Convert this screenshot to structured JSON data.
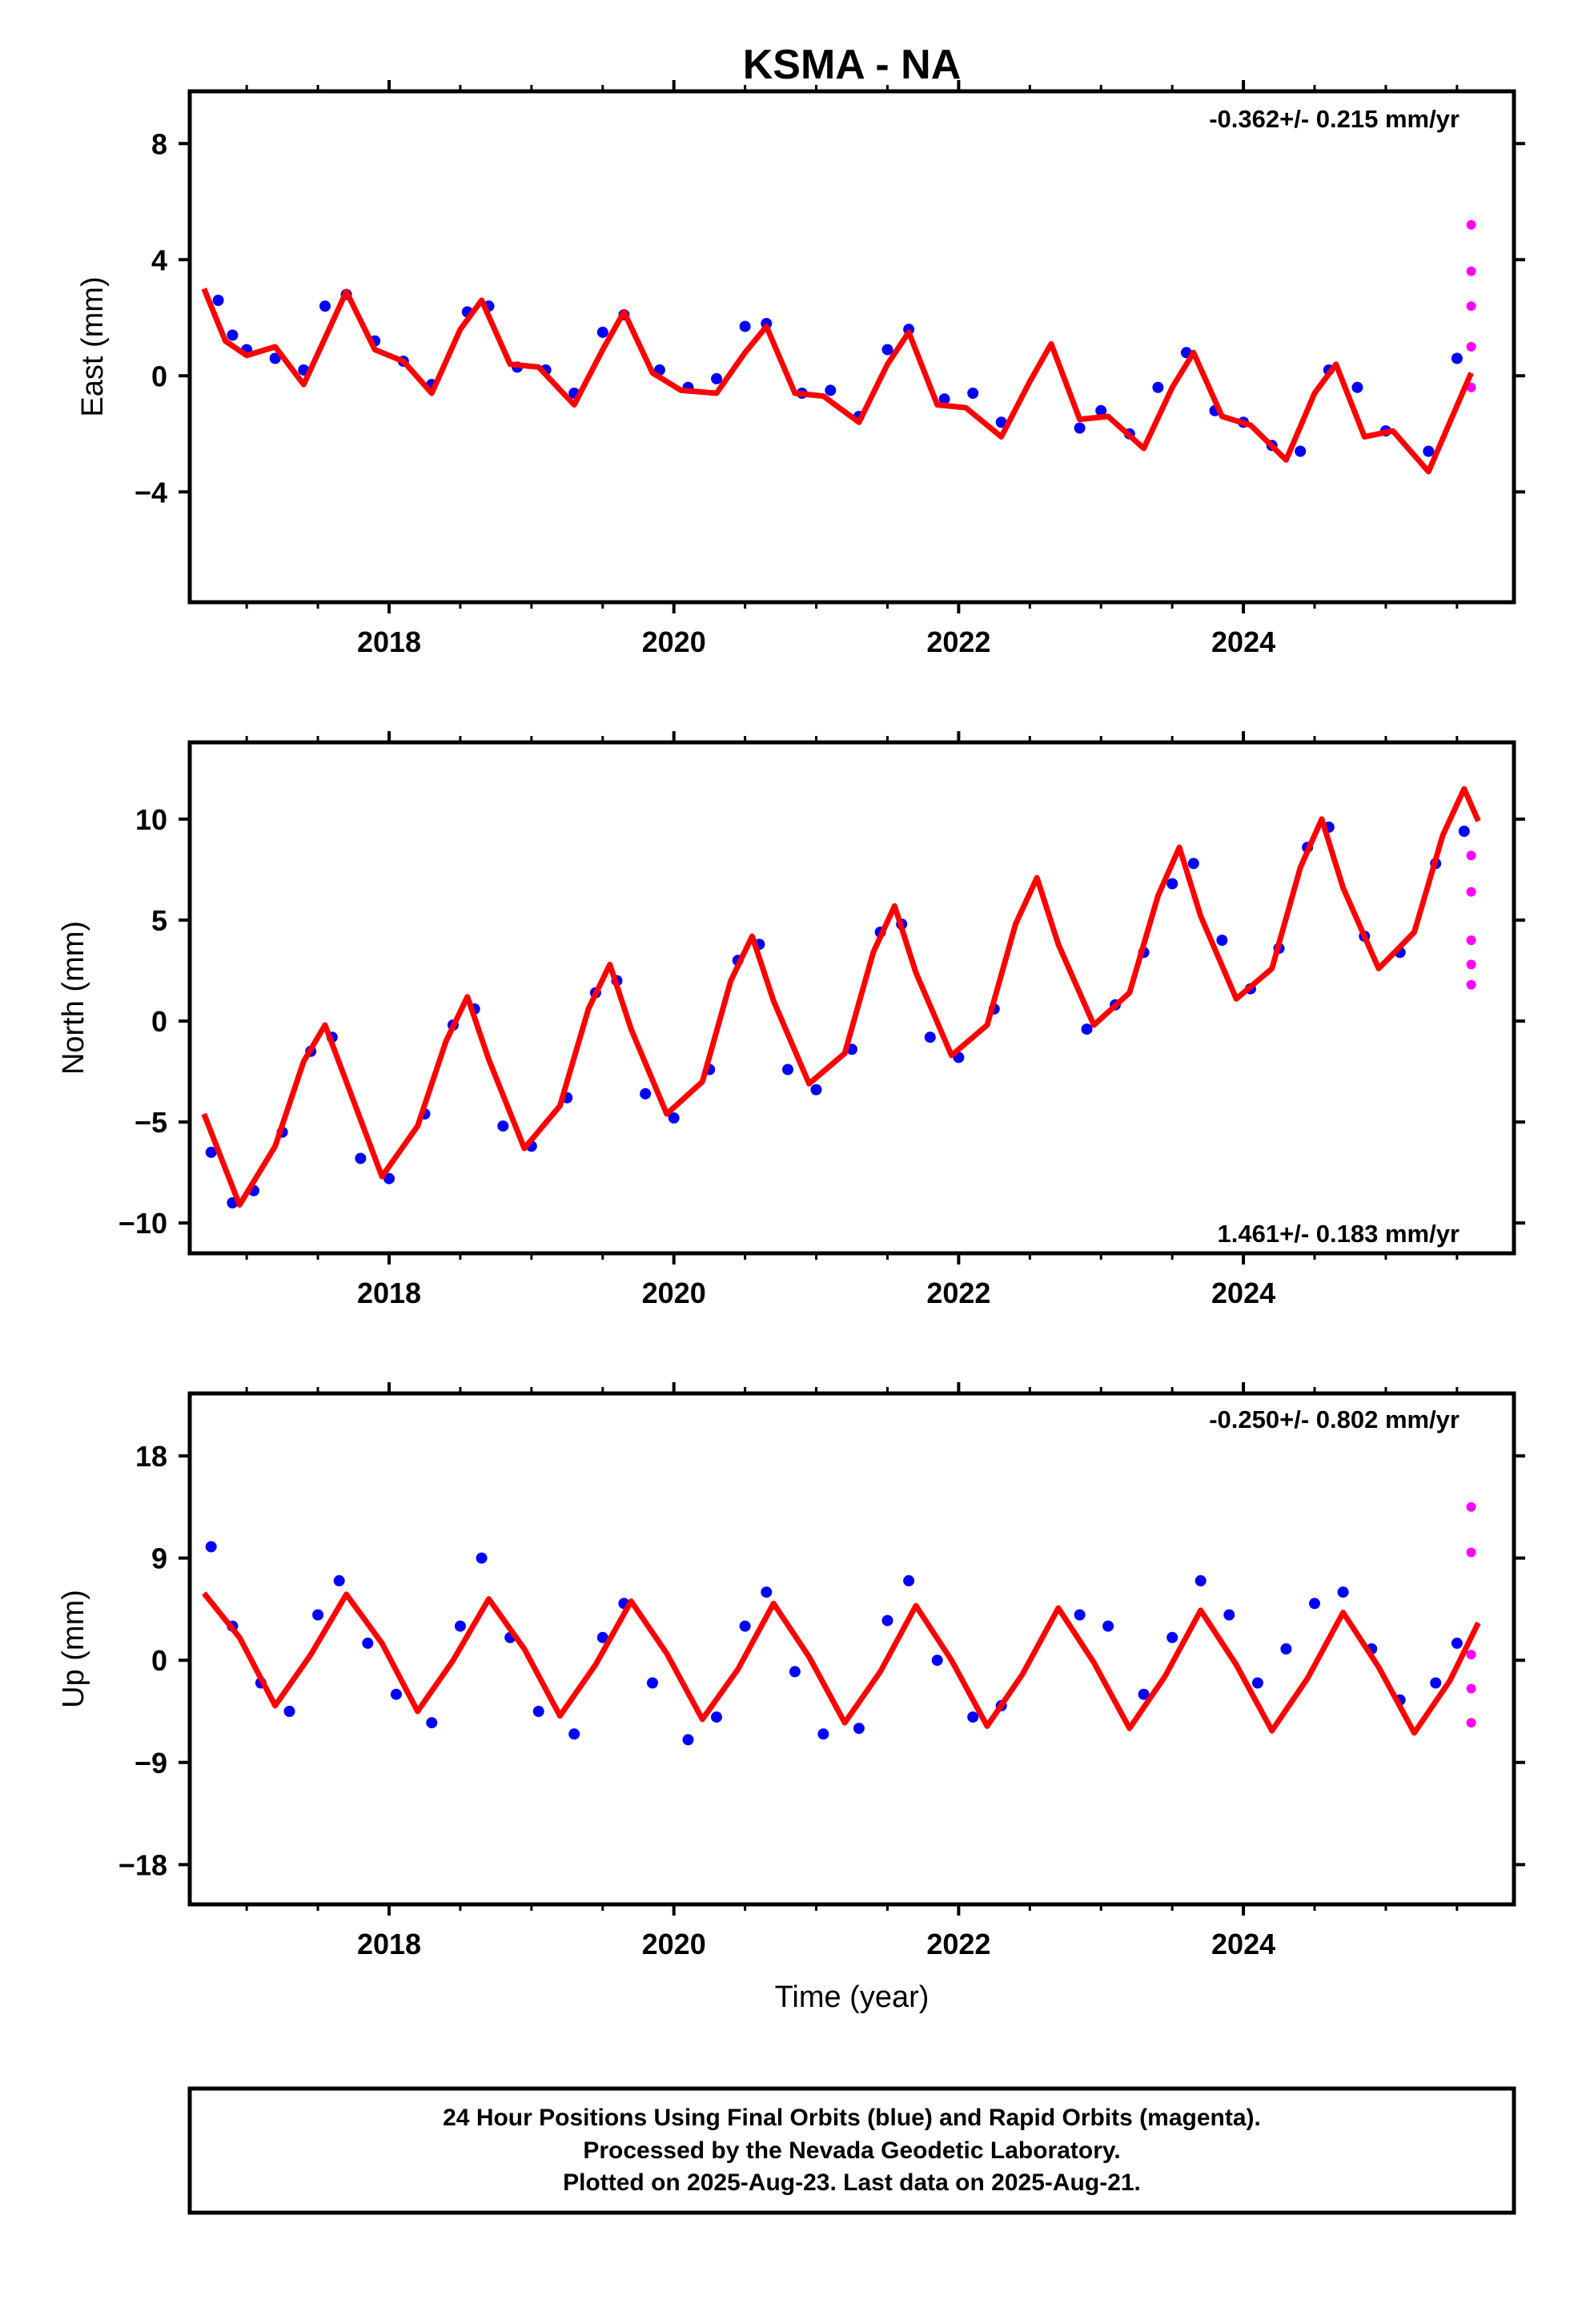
{
  "title": "KSMA - NA",
  "colors": {
    "final_orbits": "#0000ff",
    "rapid_orbits": "#ff00ff",
    "model_fit": "#ff0000",
    "frame": "#000000"
  },
  "chart_data": [
    {
      "type": "scatter",
      "ylabel": "East (mm)",
      "rate_label": "-0.362+/- 0.215 mm/yr",
      "rate_position": "top-right",
      "xlim": [
        2016.6,
        2025.9
      ],
      "ylim": [
        -7.8,
        9.8
      ],
      "xticks": [
        2018,
        2020,
        2022,
        2024
      ],
      "xtick_labels": [
        "2018",
        "2020",
        "2022",
        "2024"
      ],
      "yticks": [
        -4,
        0,
        4,
        8
      ],
      "ytick_labels": [
        "−4",
        "0",
        "4",
        "8"
      ],
      "series": [
        {
          "role": "final",
          "x": [
            2016.8,
            2016.9,
            2017.0,
            2017.2,
            2017.4,
            2017.55,
            2017.7,
            2017.9,
            2018.1,
            2018.3,
            2018.55,
            2018.7,
            2018.9,
            2019.1,
            2019.3,
            2019.5,
            2019.65,
            2019.9,
            2020.1,
            2020.3,
            2020.5,
            2020.65,
            2020.9,
            2021.1,
            2021.3,
            2021.5,
            2021.65,
            2021.9,
            2022.1,
            2022.3,
            2022.85,
            2023.0,
            2023.2,
            2023.4,
            2023.6,
            2023.8,
            2024.0,
            2024.2,
            2024.4,
            2024.6,
            2024.8,
            2025.0,
            2025.3,
            2025.5
          ],
          "y": [
            2.6,
            1.4,
            0.9,
            0.6,
            0.2,
            2.4,
            2.8,
            1.2,
            0.5,
            -0.3,
            2.2,
            2.4,
            0.3,
            0.2,
            -0.6,
            1.5,
            2.1,
            0.2,
            -0.4,
            -0.1,
            1.7,
            1.8,
            -0.6,
            -0.5,
            -1.4,
            0.9,
            1.6,
            -0.8,
            -0.6,
            -1.6,
            -1.8,
            -1.2,
            -2.0,
            -0.4,
            0.8,
            -1.2,
            -1.6,
            -2.4,
            -2.6,
            0.2,
            -0.4,
            -1.9,
            -2.6,
            0.6
          ]
        },
        {
          "role": "rapid",
          "x": [
            2025.6,
            2025.6,
            2025.6,
            2025.6,
            2025.6
          ],
          "y": [
            5.2,
            3.6,
            2.4,
            1.0,
            -0.4
          ]
        },
        {
          "role": "fit",
          "x": [
            2016.7,
            2016.85,
            2017.0,
            2017.2,
            2017.4,
            2017.55,
            2017.7,
            2017.9,
            2018.1,
            2018.3,
            2018.5,
            2018.65,
            2018.85,
            2019.05,
            2019.3,
            2019.5,
            2019.65,
            2019.85,
            2020.05,
            2020.3,
            2020.5,
            2020.65,
            2020.85,
            2021.05,
            2021.3,
            2021.5,
            2021.65,
            2021.85,
            2022.05,
            2022.3,
            2022.5,
            2022.65,
            2022.85,
            2023.05,
            2023.3,
            2023.5,
            2023.65,
            2023.85,
            2024.05,
            2024.3,
            2024.5,
            2024.65,
            2024.85,
            2025.05,
            2025.3,
            2025.6
          ],
          "y": [
            3.0,
            1.2,
            0.7,
            1.0,
            -0.3,
            1.3,
            2.9,
            0.9,
            0.5,
            -0.6,
            1.6,
            2.6,
            0.4,
            0.3,
            -1.0,
            0.9,
            2.2,
            0.1,
            -0.5,
            -0.6,
            0.8,
            1.7,
            -0.6,
            -0.7,
            -1.6,
            0.4,
            1.5,
            -1.0,
            -1.1,
            -2.1,
            -0.2,
            1.1,
            -1.5,
            -1.4,
            -2.5,
            -0.4,
            0.8,
            -1.4,
            -1.7,
            -2.9,
            -0.6,
            0.4,
            -2.1,
            -1.9,
            -3.3,
            0.1
          ]
        }
      ]
    },
    {
      "type": "scatter",
      "ylabel": "North (mm)",
      "rate_label": "1.461+/- 0.183 mm/yr",
      "rate_position": "bottom-right",
      "xlim": [
        2016.6,
        2025.9
      ],
      "ylim": [
        -11.5,
        13.8
      ],
      "xticks": [
        2018,
        2020,
        2022,
        2024
      ],
      "xtick_labels": [
        "2018",
        "2020",
        "2022",
        "2024"
      ],
      "yticks": [
        -10,
        -5,
        0,
        5,
        10
      ],
      "ytick_labels": [
        "−10",
        "−5",
        "0",
        "5",
        "10"
      ],
      "series": [
        {
          "role": "final",
          "x": [
            2016.75,
            2016.9,
            2017.05,
            2017.25,
            2017.45,
            2017.6,
            2017.8,
            2018.0,
            2018.25,
            2018.45,
            2018.6,
            2018.8,
            2019.0,
            2019.25,
            2019.45,
            2019.6,
            2019.8,
            2020.0,
            2020.25,
            2020.45,
            2020.6,
            2020.8,
            2021.0,
            2021.25,
            2021.45,
            2021.6,
            2021.8,
            2022.0,
            2022.25,
            2022.9,
            2023.1,
            2023.3,
            2023.5,
            2023.65,
            2023.85,
            2024.05,
            2024.25,
            2024.45,
            2024.6,
            2024.85,
            2025.1,
            2025.35,
            2025.55
          ],
          "y": [
            -6.5,
            -9.0,
            -8.4,
            -5.5,
            -1.5,
            -0.8,
            -6.8,
            -7.8,
            -4.6,
            -0.2,
            0.6,
            -5.2,
            -6.2,
            -3.8,
            1.4,
            2.0,
            -3.6,
            -4.8,
            -2.4,
            3.0,
            3.8,
            -2.4,
            -3.4,
            -1.4,
            4.4,
            4.8,
            -0.8,
            -1.8,
            0.6,
            -0.4,
            0.8,
            3.4,
            6.8,
            7.8,
            4.0,
            1.6,
            3.6,
            8.6,
            9.6,
            4.2,
            3.4,
            7.8,
            9.4
          ]
        },
        {
          "role": "rapid",
          "x": [
            2025.6,
            2025.6,
            2025.6,
            2025.6,
            2025.6
          ],
          "y": [
            8.2,
            6.4,
            4.0,
            2.8,
            1.8
          ]
        },
        {
          "role": "fit",
          "x": [
            2016.7,
            2016.95,
            2017.2,
            2017.4,
            2017.55,
            2017.7,
            2017.95,
            2018.2,
            2018.4,
            2018.55,
            2018.7,
            2018.95,
            2019.2,
            2019.4,
            2019.55,
            2019.7,
            2019.95,
            2020.2,
            2020.4,
            2020.55,
            2020.7,
            2020.95,
            2021.2,
            2021.4,
            2021.55,
            2021.7,
            2021.95,
            2022.2,
            2022.4,
            2022.55,
            2022.7,
            2022.95,
            2023.2,
            2023.4,
            2023.55,
            2023.7,
            2023.95,
            2024.2,
            2024.4,
            2024.55,
            2024.7,
            2024.95,
            2025.2,
            2025.4,
            2025.55,
            2025.65
          ],
          "y": [
            -4.6,
            -9.1,
            -6.2,
            -2.0,
            -0.2,
            -3.0,
            -7.7,
            -5.2,
            -1.0,
            1.2,
            -1.9,
            -6.3,
            -4.2,
            0.6,
            2.8,
            -0.4,
            -4.6,
            -3.0,
            2.0,
            4.2,
            1.0,
            -3.1,
            -1.6,
            3.4,
            5.7,
            2.4,
            -1.7,
            -0.2,
            4.8,
            7.1,
            3.8,
            -0.2,
            1.4,
            6.2,
            8.6,
            5.2,
            1.1,
            2.6,
            7.6,
            10.0,
            6.6,
            2.6,
            4.4,
            9.2,
            11.5,
            9.9
          ]
        }
      ]
    },
    {
      "type": "scatter",
      "ylabel": "Up (mm)",
      "rate_label": "-0.250+/- 0.802 mm/yr",
      "rate_position": "top-right",
      "xlabel": "Time (year)",
      "xlim": [
        2016.6,
        2025.9
      ],
      "ylim": [
        -21.5,
        23.5
      ],
      "xticks": [
        2018,
        2020,
        2022,
        2024
      ],
      "xtick_labels": [
        "2018",
        "2020",
        "2022",
        "2024"
      ],
      "yticks": [
        -18,
        -9,
        0,
        9,
        18
      ],
      "ytick_labels": [
        "−18",
        "−9",
        "0",
        "9",
        "18"
      ],
      "series": [
        {
          "role": "final",
          "x": [
            2016.75,
            2016.9,
            2017.1,
            2017.3,
            2017.5,
            2017.65,
            2017.85,
            2018.05,
            2018.3,
            2018.5,
            2018.65,
            2018.85,
            2019.05,
            2019.3,
            2019.5,
            2019.65,
            2019.85,
            2020.1,
            2020.3,
            2020.5,
            2020.65,
            2020.85,
            2021.05,
            2021.3,
            2021.5,
            2021.65,
            2021.85,
            2022.1,
            2022.3,
            2022.85,
            2023.05,
            2023.3,
            2023.5,
            2023.7,
            2023.9,
            2024.1,
            2024.3,
            2024.5,
            2024.7,
            2024.9,
            2025.1,
            2025.35,
            2025.5
          ],
          "y": [
            10.0,
            3.0,
            -2.0,
            -4.5,
            4.0,
            7.0,
            1.5,
            -3.0,
            -5.5,
            3.0,
            9.0,
            2.0,
            -4.5,
            -6.5,
            2.0,
            5.0,
            -2.0,
            -7.0,
            -5.0,
            3.0,
            6.0,
            -1.0,
            -6.5,
            -6.0,
            3.5,
            7.0,
            0.0,
            -5.0,
            -4.0,
            4.0,
            3.0,
            -3.0,
            2.0,
            7.0,
            4.0,
            -2.0,
            1.0,
            5.0,
            6.0,
            1.0,
            -3.5,
            -2.0,
            1.5
          ]
        },
        {
          "role": "rapid",
          "x": [
            2025.6,
            2025.6,
            2025.6,
            2025.6,
            2025.6
          ],
          "y": [
            13.5,
            9.5,
            0.5,
            -2.5,
            -5.5
          ]
        },
        {
          "role": "fit",
          "x": [
            2016.7,
            2016.95,
            2017.2,
            2017.45,
            2017.7,
            2017.95,
            2018.2,
            2018.45,
            2018.7,
            2018.95,
            2019.2,
            2019.45,
            2019.7,
            2019.95,
            2020.2,
            2020.45,
            2020.7,
            2020.95,
            2021.2,
            2021.45,
            2021.7,
            2021.95,
            2022.2,
            2022.45,
            2022.7,
            2022.95,
            2023.2,
            2023.45,
            2023.7,
            2023.95,
            2024.2,
            2024.45,
            2024.7,
            2024.95,
            2025.2,
            2025.45,
            2025.65
          ],
          "y": [
            5.9,
            2.0,
            -4.0,
            0.5,
            5.8,
            1.5,
            -4.5,
            0.0,
            5.4,
            1.0,
            -4.9,
            -0.4,
            5.2,
            0.6,
            -5.2,
            -0.8,
            5.0,
            0.3,
            -5.5,
            -1.0,
            4.8,
            0.0,
            -5.8,
            -1.2,
            4.6,
            -0.2,
            -6.0,
            -1.4,
            4.4,
            -0.4,
            -6.2,
            -1.6,
            4.2,
            -0.6,
            -6.4,
            -1.8,
            3.3
          ]
        }
      ]
    }
  ],
  "footer": {
    "line1": "24 Hour Positions Using Final Orbits (blue) and Rapid Orbits (magenta).",
    "line2": "Processed by the Nevada Geodetic Laboratory.",
    "line3": "Plotted on 2025-Aug-23. Last data on 2025-Aug-21."
  }
}
